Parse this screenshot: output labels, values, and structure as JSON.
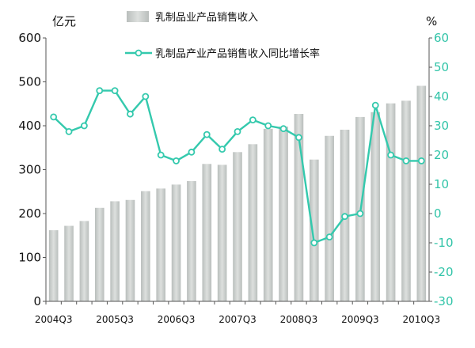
{
  "chart_data": {
    "type": "bar",
    "categories": [
      "2004Q3",
      "2004Q4",
      "2005Q1",
      "2005Q2",
      "2005Q3",
      "2005Q4",
      "2006Q1",
      "2006Q2",
      "2006Q3",
      "2006Q4",
      "2007Q1",
      "2007Q2",
      "2007Q3",
      "2007Q4",
      "2008Q1",
      "2008Q2",
      "2008Q3",
      "2008Q4",
      "2009Q1",
      "2009Q2",
      "2009Q3",
      "2009Q4",
      "2010Q1",
      "2010Q2",
      "2010Q3"
    ],
    "x_tick_labels": [
      "2004Q3",
      "2005Q3",
      "2006Q3",
      "2007Q3",
      "2008Q3",
      "2009Q3",
      "2010Q3"
    ],
    "series": [
      {
        "name": "乳制品业产品销售收入",
        "type": "bar",
        "axis": "left",
        "color": "#c9cdcb",
        "values": [
          162,
          172,
          183,
          213,
          228,
          231,
          251,
          257,
          266,
          274,
          313,
          311,
          340,
          358,
          393,
          398,
          427,
          323,
          377,
          391,
          420,
          431,
          451,
          457,
          491
        ]
      },
      {
        "name": "乳制品产业产品销售收入同比增长率",
        "type": "line",
        "axis": "right",
        "color": "#34c9ad",
        "values": [
          33,
          28,
          30,
          42,
          42,
          34,
          40,
          20,
          18,
          21,
          27,
          22,
          28,
          32,
          30,
          29,
          26,
          -10,
          -8,
          -1,
          0,
          37,
          20,
          18,
          18
        ]
      }
    ],
    "left_axis": {
      "unit": "亿元",
      "min": 0,
      "max": 600,
      "ticks": [
        0,
        100,
        200,
        300,
        400,
        500,
        600
      ]
    },
    "right_axis": {
      "unit": "%",
      "min": -30,
      "max": 60,
      "ticks": [
        -30,
        -20,
        -10,
        0,
        10,
        20,
        30,
        40,
        50,
        60
      ]
    },
    "grid": false,
    "legend_position": "top"
  }
}
